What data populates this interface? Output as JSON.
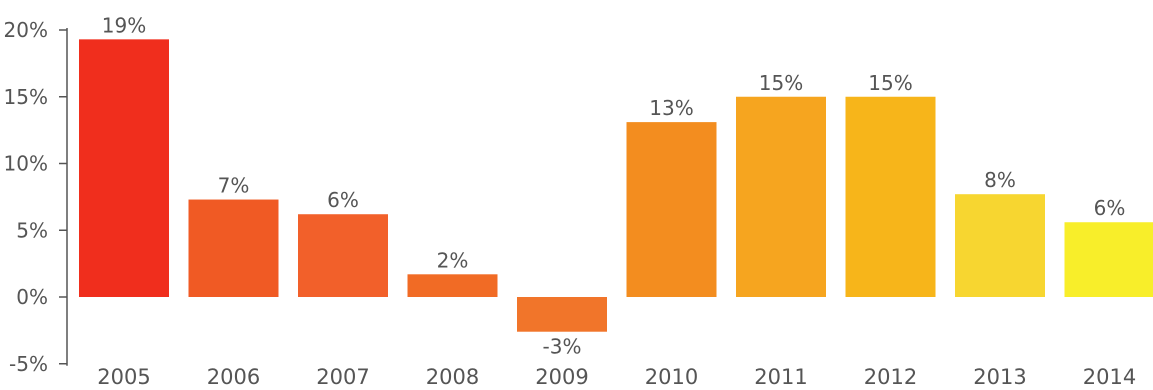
{
  "chart_data": {
    "type": "bar",
    "title": "",
    "xlabel": "",
    "ylabel": "",
    "categories": [
      "2005",
      "2006",
      "2007",
      "2008",
      "2009",
      "2010",
      "2011",
      "2012",
      "2013",
      "2014"
    ],
    "values": [
      19.3,
      7.3,
      6.2,
      1.7,
      -2.6,
      13.1,
      15.0,
      15.0,
      7.7,
      5.6
    ],
    "value_labels": [
      "19%",
      "7%",
      "6%",
      "2%",
      "-3%",
      "13%",
      "15%",
      "15%",
      "8%",
      "6%"
    ],
    "ylim": [
      -5,
      20
    ],
    "yticks": [
      20,
      15,
      10,
      5,
      0,
      -5
    ],
    "ytick_labels": [
      "20%",
      "15%",
      "10%",
      "5%",
      "0%",
      "-5%"
    ],
    "grid": false,
    "legend": "none",
    "colors": [
      "#f02e1d",
      "#f05a24",
      "#f2602a",
      "#f16b25",
      "#f1752a",
      "#f38d1f",
      "#f6a51f",
      "#f7b51a",
      "#f7d630",
      "#f8ee2a"
    ]
  }
}
